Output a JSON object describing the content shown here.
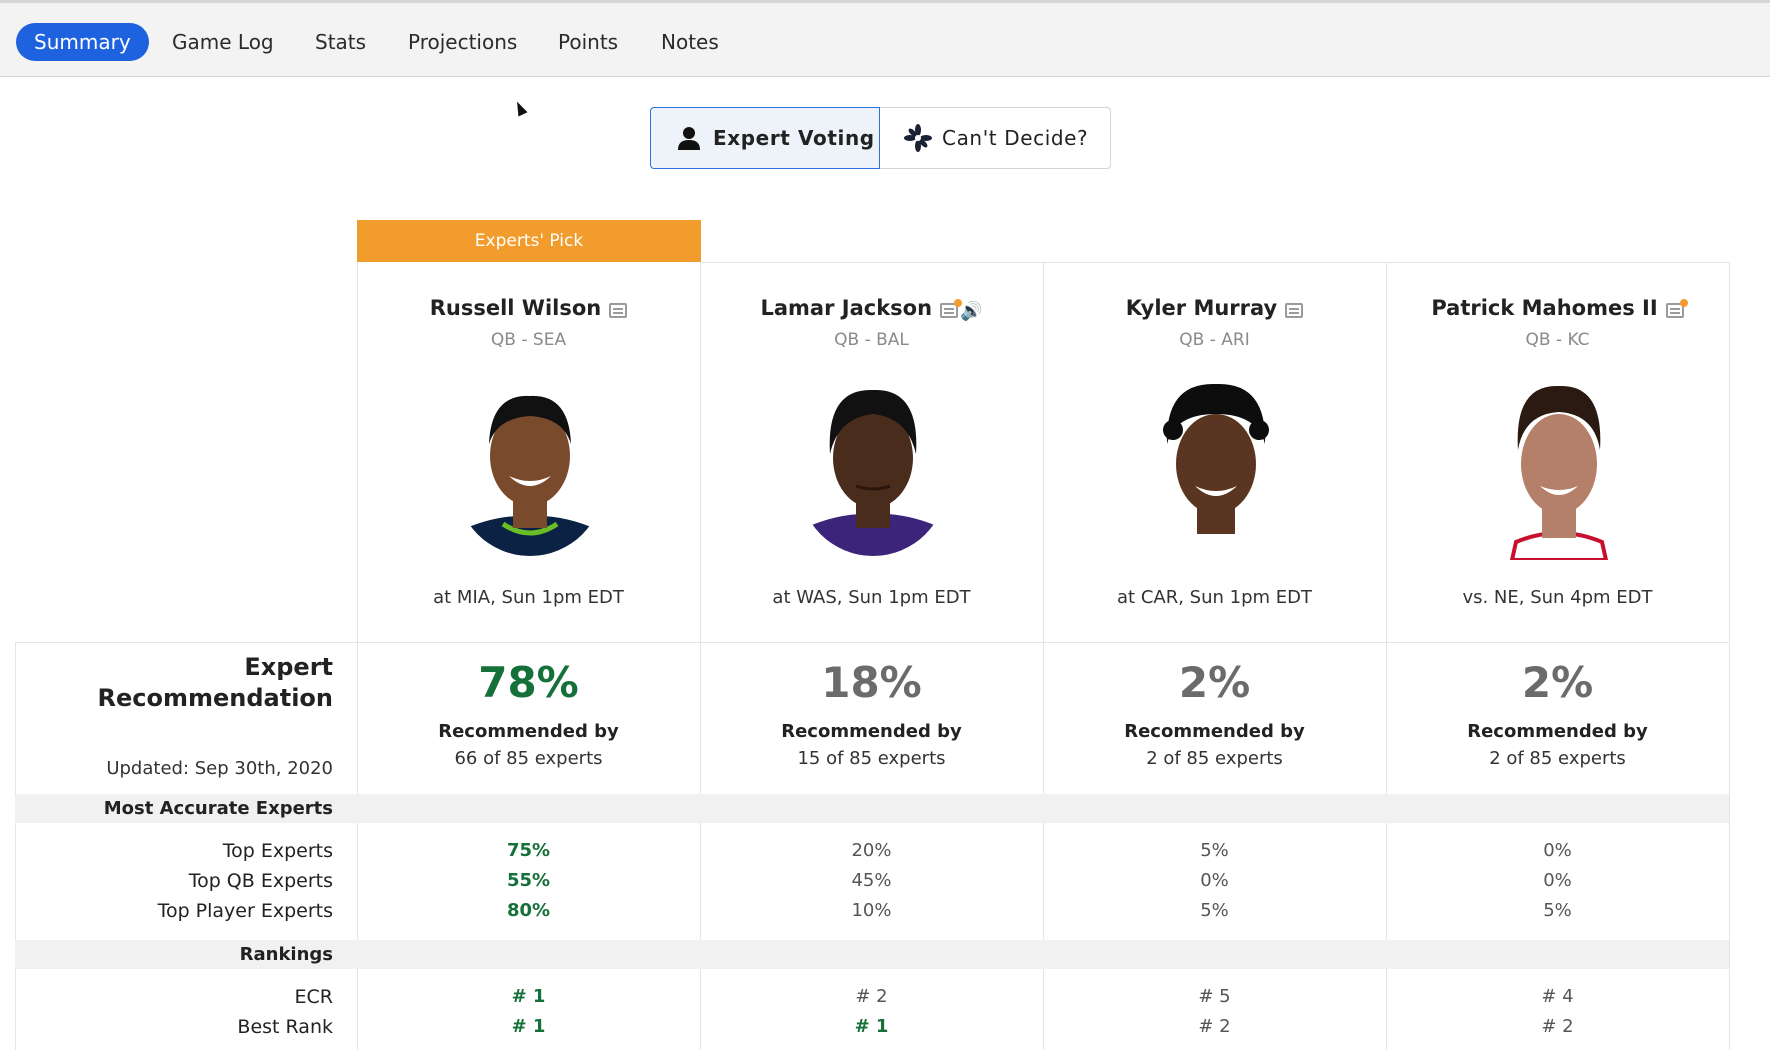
{
  "tabs": [
    {
      "label": "Summary",
      "active": true
    },
    {
      "label": "Game Log"
    },
    {
      "label": "Stats"
    },
    {
      "label": "Projections"
    },
    {
      "label": "Points"
    },
    {
      "label": "Notes"
    }
  ],
  "toggle": {
    "expert_voting": "Expert Voting",
    "cant_decide": "Can't Decide?"
  },
  "experts_pick_label": "Experts' Pick",
  "players": [
    {
      "name": "Russell Wilson",
      "pos": "QB - SEA",
      "game": "at MIA, Sun 1pm EDT",
      "icons": [
        "note-icon"
      ],
      "skin": "#7a4a2c",
      "jersey": "#0b2244",
      "trim": "#69be28"
    },
    {
      "name": "Lamar Jackson",
      "pos": "QB - BAL",
      "game": "at WAS, Sun 1pm EDT",
      "icons": [
        "note-hot-icon",
        "speaker-icon"
      ],
      "skin": "#4a2c1c",
      "jersey": "#3b2479",
      "trim": "#3b2479"
    },
    {
      "name": "Kyler Murray",
      "pos": "QB - ARI",
      "game": "at CAR, Sun 1pm EDT",
      "icons": [
        "note-icon"
      ],
      "skin": "#5a3622",
      "jersey": "#ffffff",
      "trim": "#cccccc"
    },
    {
      "name": "Patrick Mahomes II",
      "pos": "QB - KC",
      "game": "vs. NE, Sun 4pm EDT",
      "icons": [
        "note-hot-icon"
      ],
      "skin": "#b5806a",
      "jersey": "#ffffff",
      "trim": "#c8102e"
    }
  ],
  "recommendation": {
    "label_line1": "Expert",
    "label_line2": "Recommendation",
    "updated": "Updated: Sep 30th, 2020",
    "recommended_by": "Recommended by",
    "cells": [
      {
        "pct": "78%",
        "of": "66 of 85 experts",
        "best": true
      },
      {
        "pct": "18%",
        "of": "15 of 85 experts",
        "best": false
      },
      {
        "pct": "2%",
        "of": "2 of 85 experts",
        "best": false
      },
      {
        "pct": "2%",
        "of": "2 of 85 experts",
        "best": false
      }
    ]
  },
  "most_accurate": {
    "title": "Most Accurate Experts",
    "rows": [
      {
        "label": "Top Experts",
        "values": [
          "75%",
          "20%",
          "5%",
          "0%"
        ],
        "best": [
          true,
          false,
          false,
          false
        ]
      },
      {
        "label": "Top QB Experts",
        "values": [
          "55%",
          "45%",
          "0%",
          "0%"
        ],
        "best": [
          true,
          false,
          false,
          false
        ]
      },
      {
        "label": "Top Player Experts",
        "values": [
          "80%",
          "10%",
          "5%",
          "5%"
        ],
        "best": [
          true,
          false,
          false,
          false
        ]
      }
    ]
  },
  "rankings": {
    "title": "Rankings",
    "rows": [
      {
        "label": "ECR",
        "values": [
          "# 1",
          "# 2",
          "# 5",
          "# 4"
        ],
        "best": [
          true,
          false,
          false,
          false
        ]
      },
      {
        "label": "Best Rank",
        "values": [
          "# 1",
          "# 1",
          "# 2",
          "# 2"
        ],
        "best": [
          true,
          true,
          false,
          false
        ]
      }
    ]
  },
  "colors": {
    "accent": "#1f62e0",
    "pick_banner": "#f39c2e",
    "best_green": "#16703a"
  }
}
